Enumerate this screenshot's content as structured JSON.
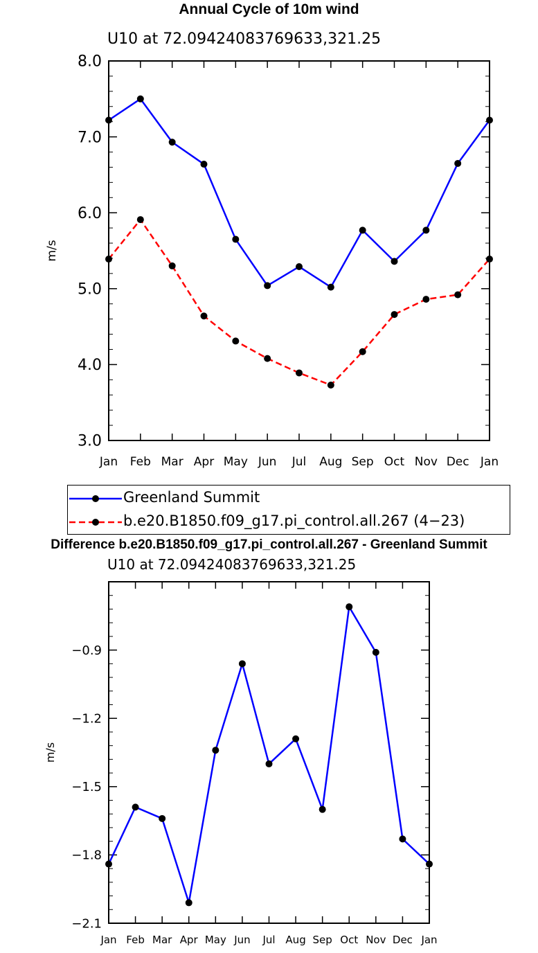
{
  "chart_data": [
    {
      "type": "line",
      "title": "Annual Cycle of 10m wind",
      "subtitle": "U10  at  72.09424083769633,321.25",
      "xlabel": "",
      "ylabel": "m/s",
      "categories": [
        "Jan",
        "Feb",
        "Mar",
        "Apr",
        "May",
        "Jun",
        "Jul",
        "Aug",
        "Sep",
        "Oct",
        "Nov",
        "Dec",
        "Jan"
      ],
      "ylim": [
        3.0,
        8.0
      ],
      "yticks": [
        "3.0",
        "4.0",
        "5.0",
        "6.0",
        "7.0",
        "8.0"
      ],
      "grid": false,
      "legend_position": "bottom",
      "series": [
        {
          "name": "Greenland Summit",
          "color": "#0000ff",
          "dash": "solid",
          "values": [
            7.22,
            7.5,
            6.93,
            6.64,
            5.65,
            5.04,
            5.29,
            5.02,
            5.77,
            5.36,
            5.77,
            6.65,
            7.22
          ]
        },
        {
          "name": "b.e20.B1850.f09_g17.pi_control.all.267 (4−23)",
          "color": "#ff0000",
          "dash": "dashed",
          "values": [
            5.39,
            5.91,
            5.3,
            4.64,
            4.31,
            4.08,
            3.89,
            3.73,
            4.17,
            4.66,
            4.86,
            4.92,
            5.39
          ]
        }
      ]
    },
    {
      "type": "line",
      "title": "Difference b.e20.B1850.f09_g17.pi_control.all.267 - Greenland Summit",
      "subtitle": "U10  at  72.09424083769633,321.25",
      "xlabel": "",
      "ylabel": "m/s",
      "categories": [
        "Jan",
        "Feb",
        "Mar",
        "Apr",
        "May",
        "Jun",
        "Jul",
        "Aug",
        "Sep",
        "Oct",
        "Nov",
        "Dec",
        "Jan"
      ],
      "ylim": [
        -2.1,
        -0.6
      ],
      "yticks": [
        "−2.1",
        "−1.8",
        "−1.5",
        "−1.2",
        "−0.9"
      ],
      "ytick_values": [
        -2.1,
        -1.8,
        -1.5,
        -1.2,
        -0.9
      ],
      "grid": false,
      "series": [
        {
          "color": "#0000ff",
          "dash": "solid",
          "values": [
            -1.84,
            -1.59,
            -1.64,
            -2.01,
            -1.34,
            -0.96,
            -1.4,
            -1.29,
            -1.6,
            -0.71,
            -0.91,
            -1.73,
            -1.84
          ]
        }
      ]
    }
  ]
}
